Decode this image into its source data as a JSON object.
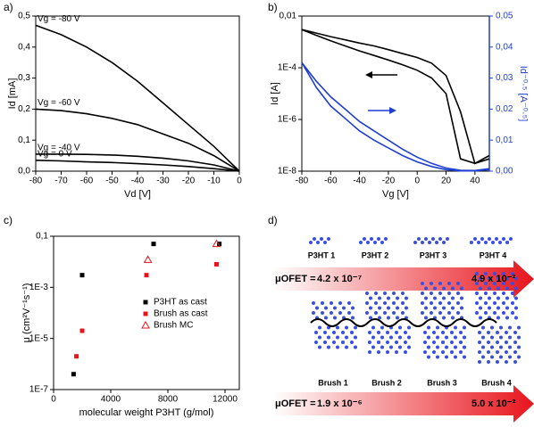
{
  "panel_labels": [
    "a)",
    "b)",
    "c)",
    "d)"
  ],
  "chart_data": [
    {
      "type": "line",
      "xlabel": "Vd [V]",
      "ylabel": "Id [mA]",
      "x": [
        -80,
        -70,
        -60,
        -50,
        -40,
        -30,
        -20,
        -10,
        0
      ],
      "series": [
        {
          "name": "Vg = -80 V",
          "color": "#000000",
          "values": [
            0.47,
            0.44,
            0.4,
            0.35,
            0.29,
            0.22,
            0.15,
            0.08,
            0
          ]
        },
        {
          "name": "Vg = -60 V",
          "color": "#000000",
          "values": [
            0.2,
            0.195,
            0.185,
            0.17,
            0.15,
            0.12,
            0.09,
            0.05,
            0
          ]
        },
        {
          "name": "Vg = -40 V",
          "color": "#000000",
          "values": [
            0.055,
            0.055,
            0.054,
            0.052,
            0.048,
            0.042,
            0.033,
            0.02,
            0
          ]
        },
        {
          "name": "Vg =    0 V",
          "color": "#000000",
          "values": [
            0.035,
            0.033,
            0.03,
            0.028,
            0.024,
            0.02,
            0.015,
            0.008,
            0
          ]
        }
      ],
      "xlim": [
        -80,
        0
      ],
      "xticks": [
        -80,
        -70,
        -60,
        -50,
        -40,
        -30,
        -20,
        -10,
        0
      ],
      "ylim": [
        0,
        0.5
      ],
      "yticks": [
        {
          "value": 0,
          "label": "0,0"
        },
        {
          "value": 0.1,
          "label": "0,1"
        },
        {
          "value": 0.2,
          "label": "0,2"
        },
        {
          "value": 0.3,
          "label": "0,3"
        },
        {
          "value": 0.4,
          "label": "0,4"
        },
        {
          "value": 0.5,
          "label": "0,5"
        }
      ]
    },
    {
      "type": "line",
      "xlabel": "Vg [V]",
      "ylabel": "Id [A]",
      "y2label": "Id⁻⁰·⁵ [A⁻⁰·⁵]",
      "y2_color": "#1f3fd0",
      "ylog": true,
      "x": [
        -80,
        -70,
        -60,
        -50,
        -40,
        -30,
        -20,
        -10,
        0,
        10,
        20,
        30,
        40,
        50
      ],
      "series": [
        {
          "color": "#000000",
          "values": [
            0.003,
            0.0022,
            0.0016,
            0.0012,
            0.0009,
            0.0007,
            0.0005,
            0.00035,
            0.00025,
            0.00015,
            5e-05,
            2e-06,
            2e-08,
            4e-08
          ]
        },
        {
          "color": "#000000",
          "values": [
            0.003,
            0.0018,
            0.0011,
            0.0007,
            0.00045,
            0.0003,
            0.0002,
            0.00013,
            8e-05,
            4e-05,
            1e-05,
            3e-08,
            2e-08,
            3e-08
          ]
        },
        {
          "color": "#1f3fd0",
          "axis": "y2",
          "values": [
            0.035,
            0.029,
            0.024,
            0.02,
            0.016,
            0.013,
            0.01,
            0.007,
            0.0045,
            0.0025,
            0.001,
            0.0003,
            0.0002,
            0.0008
          ]
        },
        {
          "color": "#1f3fd0",
          "axis": "y2",
          "values": [
            0.035,
            0.027,
            0.021,
            0.017,
            0.013,
            0.01,
            0.0075,
            0.005,
            0.003,
            0.0015,
            0.0005,
            0.0001,
            0.0001,
            0.0005
          ]
        }
      ],
      "xlim": [
        -80,
        50
      ],
      "xticks": [
        -80,
        -60,
        -40,
        -20,
        0,
        20,
        40
      ],
      "ylim": [
        1e-08,
        0.01
      ],
      "yticks": [
        {
          "value": 1e-08,
          "label": "1E-8"
        },
        {
          "value": 1e-06,
          "label": "1E-6"
        },
        {
          "value": 0.0001,
          "label": "1E-4"
        },
        {
          "value": 0.01,
          "label": "0,01"
        }
      ],
      "y2lim": [
        0,
        0.05
      ],
      "y2ticks": [
        {
          "value": 0,
          "label": "0,00"
        },
        {
          "value": 0.01,
          "label": "0,01"
        },
        {
          "value": 0.02,
          "label": "0,02"
        },
        {
          "value": 0.03,
          "label": "0,03"
        },
        {
          "value": 0.04,
          "label": "0,04"
        },
        {
          "value": 0.05,
          "label": "0,05"
        }
      ]
    },
    {
      "type": "scatter",
      "xlabel": "molecular weight P3HT (g/mol)",
      "ylabel": "μ (cm²V⁻¹s⁻¹)",
      "ylog": true,
      "legend": "center right",
      "series": [
        {
          "name": "P3HT as cast",
          "color": "#000000",
          "marker": "square",
          "x": [
            1400,
            2000,
            7000,
            11600
          ],
          "values": [
            4e-07,
            0.003,
            0.05,
            0.05
          ]
        },
        {
          "name": "Brush as cast",
          "color": "#e8141c",
          "marker": "square",
          "x": [
            1600,
            2000,
            6500,
            11400
          ],
          "values": [
            2e-06,
            2e-05,
            0.003,
            0.008
          ]
        },
        {
          "name": "Brush MC",
          "color": "#e8141c",
          "marker": "triangle-open",
          "x": [
            6600,
            11400
          ],
          "values": [
            0.012,
            0.05
          ]
        }
      ],
      "xlim": [
        0,
        13000
      ],
      "xticks": [
        0,
        4000,
        8000,
        12000
      ],
      "ylim": [
        1e-07,
        0.1
      ],
      "yticks": [
        {
          "value": 1e-07,
          "label": "1E-7"
        },
        {
          "value": 1e-05,
          "label": "1E-5"
        },
        {
          "value": 0.001,
          "label": "1E-3"
        },
        {
          "value": 0.1,
          "label": "0,1"
        }
      ]
    }
  ],
  "diagram": {
    "top_labels": [
      "P3HT 1",
      "P3HT 2",
      "P3HT 3",
      "P3HT 4"
    ],
    "mu_label": "μOFET =",
    "top_low": "4.2 x 10⁻⁷",
    "top_high": "4.9 x 10⁻²",
    "bottom_labels": [
      "Brush 1",
      "Brush 2",
      "Brush 3",
      "Brush 4"
    ],
    "bottom_low": "1.9 x 10⁻⁶",
    "bottom_high": "5.0 x 10⁻²"
  }
}
